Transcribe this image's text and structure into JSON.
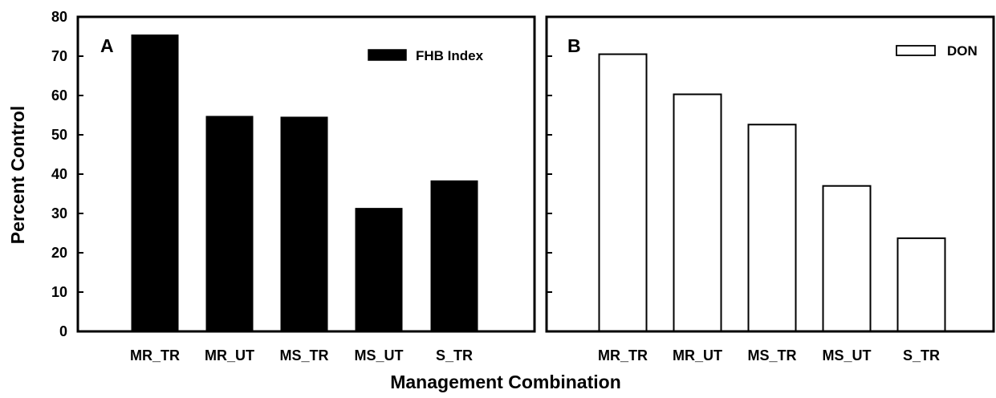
{
  "xlabel": "Management Combination",
  "ylabel": "Percent Control",
  "chart_data": [
    {
      "type": "bar",
      "panel": "A",
      "categories": [
        "MR_TR",
        "MR_UT",
        "MS_TR",
        "MS_UT",
        "S_TR"
      ],
      "series": [
        {
          "name": "FHB Index",
          "values": [
            75.3,
            54.6,
            54.4,
            31.2,
            38.2
          ],
          "fill": "#000000"
        }
      ],
      "ylim": [
        0,
        80
      ],
      "yticks": [
        0,
        10,
        20,
        30,
        40,
        50,
        60,
        70,
        80
      ],
      "legend_position": "top-right",
      "grid": false
    },
    {
      "type": "bar",
      "panel": "B",
      "categories": [
        "MR_TR",
        "MR_UT",
        "MS_TR",
        "MS_UT",
        "S_TR"
      ],
      "series": [
        {
          "name": "DON",
          "values": [
            70.5,
            60.3,
            52.6,
            37.0,
            23.7
          ],
          "fill": "#ffffff"
        }
      ],
      "ylim": [
        0,
        80
      ],
      "yticks": [
        0,
        10,
        20,
        30,
        40,
        50,
        60,
        70,
        80
      ],
      "legend_position": "top-right",
      "grid": false
    }
  ]
}
